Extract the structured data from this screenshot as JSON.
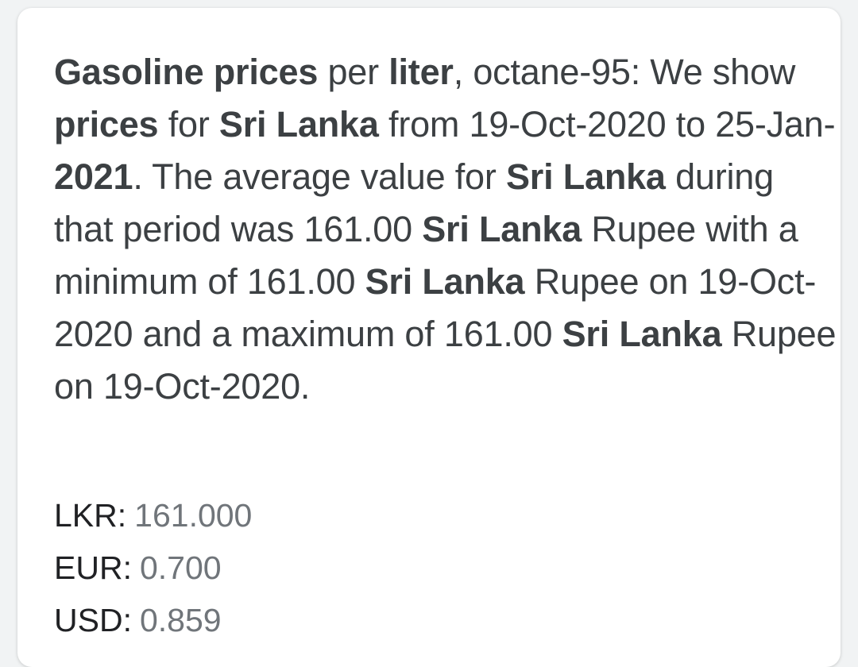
{
  "snippet": {
    "s01": "Gasoline prices",
    "s02": " per ",
    "s03": "liter",
    "s04": ", octane-95: We show ",
    "s05": "prices",
    "s06": " for ",
    "s07": "Sri Lanka",
    "s08": " from 19-Oct-2020 to 25-Jan-",
    "s09": "2021",
    "s10": ". The average value for ",
    "s11": "Sri Lanka",
    "s12": " during that period was 161.00 ",
    "s13": "Sri Lanka",
    "s14": " Rupee with a minimum of 161.00 ",
    "s15": "Sri Lanka",
    "s16": " Rupee on 19-Oct-2020 and a maximum of 161.00 ",
    "s17": "Sri Lanka",
    "s18": " Rupee on 19-Oct-2020."
  },
  "rates": [
    {
      "code": "LKR:",
      "value": "161.000"
    },
    {
      "code": "EUR:",
      "value": "0.700"
    },
    {
      "code": "USD:",
      "value": "0.859"
    }
  ],
  "colors": {
    "text": "#3c4043",
    "muted": "#70757a",
    "card": "#ffffff",
    "background": "#f1f3f4"
  }
}
